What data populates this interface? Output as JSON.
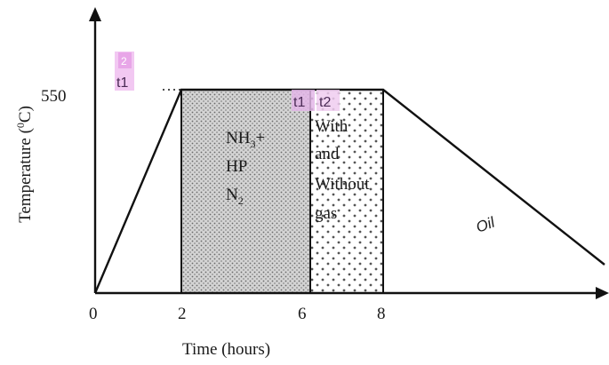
{
  "axes": {
    "y_label": "Temperature (",
    "y_label_sup": "0",
    "y_label_end": "C)",
    "y_tick": "550",
    "x_label": "Time (hours)",
    "x_ticks": [
      "0",
      "2",
      "6",
      "8"
    ]
  },
  "regions": {
    "nitriding": {
      "line1": "NH",
      "line1_sub": "3",
      "line1_end": "+",
      "line2": "HP",
      "line3": "N",
      "line3_sub": "2"
    },
    "cooling_gas": {
      "line1": "With",
      "line2": "and",
      "line3": "Without",
      "line4": "gas"
    },
    "oil": "Oil"
  },
  "markers": [
    {
      "number": "2",
      "label": "t1"
    },
    {
      "label": "t1"
    },
    {
      "label": "t2"
    }
  ],
  "colors": {
    "line": "#111111",
    "dense_fill": "#c9c9c9",
    "marker_bg": "#f2c8f2",
    "marker_num_bg": "#e8a6e8"
  }
}
